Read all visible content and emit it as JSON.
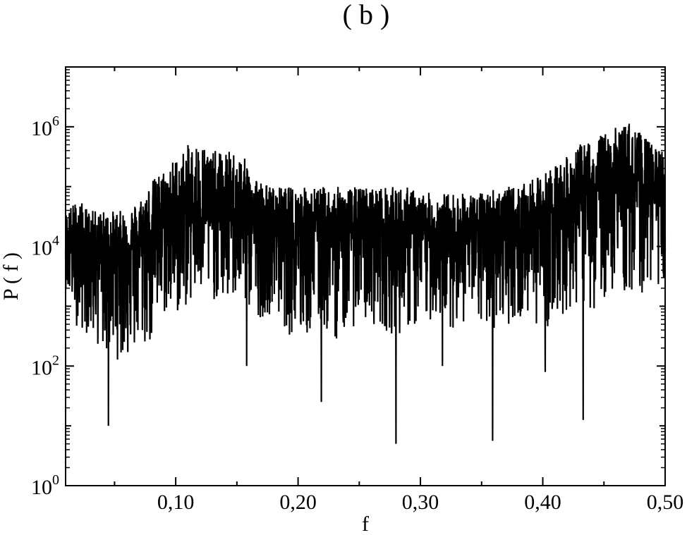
{
  "chart_data": {
    "type": "line",
    "title": "( b )",
    "xlabel": "f",
    "ylabel": "P ( f )",
    "xlim": [
      0.01,
      0.5
    ],
    "ylim_log10": [
      0,
      7
    ],
    "y_scale": "log",
    "grid": false,
    "x_ticks": [
      {
        "value": 0.1,
        "label": "0,10"
      },
      {
        "value": 0.2,
        "label": "0,20"
      },
      {
        "value": 0.3,
        "label": "0,30"
      },
      {
        "value": 0.4,
        "label": "0,40"
      },
      {
        "value": 0.5,
        "label": "0,50"
      }
    ],
    "y_ticks": [
      {
        "exp": 0,
        "base": "10",
        "sup": "0"
      },
      {
        "exp": 2,
        "base": "10",
        "sup": "2"
      },
      {
        "exp": 4,
        "base": "10",
        "sup": "4"
      },
      {
        "exp": 6,
        "base": "10",
        "sup": "6"
      }
    ],
    "series": [
      {
        "color": "#000000",
        "x": [
          0.01,
          0.02,
          0.03,
          0.04,
          0.05,
          0.06,
          0.07,
          0.08,
          0.09,
          0.1,
          0.11,
          0.12,
          0.13,
          0.14,
          0.15,
          0.16,
          0.17,
          0.18,
          0.19,
          0.2,
          0.21,
          0.22,
          0.23,
          0.24,
          0.25,
          0.26,
          0.27,
          0.28,
          0.29,
          0.3,
          0.31,
          0.32,
          0.33,
          0.34,
          0.35,
          0.36,
          0.37,
          0.38,
          0.39,
          0.4,
          0.41,
          0.42,
          0.43,
          0.44,
          0.45,
          0.46,
          0.47,
          0.48,
          0.49,
          0.5
        ],
        "log10_median": [
          4.0,
          4.1,
          4.0,
          4.0,
          4.0,
          4.0,
          4.1,
          4.3,
          4.4,
          4.5,
          4.6,
          4.6,
          4.6,
          4.6,
          4.6,
          4.5,
          4.4,
          4.3,
          4.3,
          4.3,
          4.3,
          4.3,
          4.3,
          4.3,
          4.3,
          4.3,
          4.3,
          4.3,
          4.3,
          4.2,
          4.2,
          4.2,
          4.2,
          4.2,
          4.2,
          4.3,
          4.3,
          4.3,
          4.4,
          4.5,
          4.6,
          4.7,
          4.8,
          4.9,
          5.0,
          5.1,
          5.1,
          5.0,
          4.9,
          4.9
        ],
        "log10_upper": [
          4.6,
          4.8,
          4.6,
          4.6,
          4.6,
          4.6,
          4.8,
          5.1,
          5.3,
          5.5,
          5.7,
          5.8,
          5.6,
          5.6,
          5.6,
          5.4,
          5.1,
          5.0,
          5.0,
          5.0,
          5.0,
          5.0,
          5.0,
          5.0,
          5.0,
          5.0,
          5.0,
          5.0,
          5.0,
          4.9,
          4.9,
          4.9,
          4.9,
          4.9,
          4.9,
          5.0,
          5.0,
          5.0,
          5.1,
          5.2,
          5.4,
          5.5,
          5.7,
          5.8,
          5.9,
          6.0,
          6.1,
          5.9,
          5.7,
          5.6
        ],
        "log10_lower": [
          3.3,
          2.6,
          2.5,
          2.2,
          2.1,
          2.1,
          2.2,
          2.3,
          2.8,
          2.8,
          3.0,
          3.1,
          3.1,
          3.0,
          3.1,
          2.9,
          2.8,
          2.9,
          2.6,
          2.3,
          2.5,
          2.6,
          2.4,
          2.6,
          2.7,
          2.7,
          2.6,
          2.5,
          2.6,
          2.5,
          2.8,
          2.7,
          2.6,
          2.8,
          2.6,
          2.6,
          2.7,
          2.7,
          2.8,
          2.6,
          2.7,
          2.9,
          3.0,
          2.9,
          3.1,
          3.3,
          3.1,
          3.2,
          3.3,
          3.4
        ],
        "dips": [
          {
            "x": 0.045,
            "log10": 1.0
          },
          {
            "x": 0.158,
            "log10": 2.0
          },
          {
            "x": 0.219,
            "log10": 1.4
          },
          {
            "x": 0.28,
            "log10": 0.7
          },
          {
            "x": 0.318,
            "log10": 2.0
          },
          {
            "x": 0.359,
            "log10": 0.75
          },
          {
            "x": 0.402,
            "log10": 1.9
          },
          {
            "x": 0.433,
            "log10": 1.1
          }
        ]
      }
    ]
  }
}
